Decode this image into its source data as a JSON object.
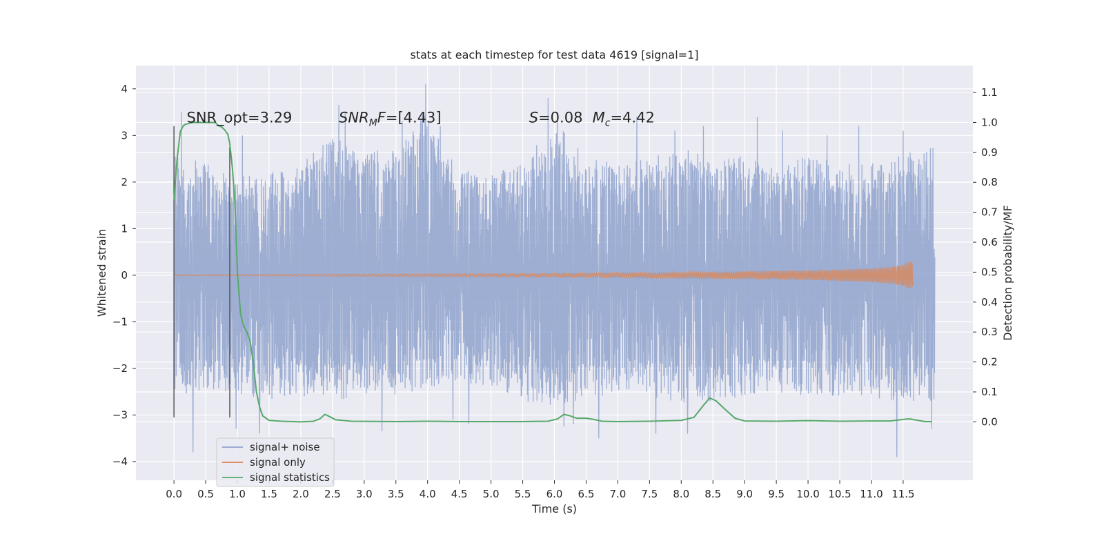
{
  "chart_data": {
    "type": "line",
    "title": "stats at each timestep for test data 4619 [signal=1]",
    "xlabel": "Time (s)",
    "ylabel": "Whitened strain",
    "y2label": "Detection probability/MF",
    "xlim": [
      -0.6,
      12.6
    ],
    "ylim": [
      -4.4,
      4.5
    ],
    "y2lim": [
      -0.195,
      1.19
    ],
    "xticks": [
      0.0,
      0.5,
      1.0,
      1.5,
      2.0,
      2.5,
      3.0,
      3.5,
      4.0,
      4.5,
      5.0,
      5.5,
      6.0,
      6.5,
      7.0,
      7.5,
      8.0,
      8.5,
      9.0,
      9.5,
      10.0,
      10.5,
      11.0,
      11.5
    ],
    "xtick_labels": [
      "0.0",
      "0.5",
      "1.0",
      "1.5",
      "2.0",
      "2.5",
      "3.0",
      "3.5",
      "4.0",
      "4.5",
      "5.0",
      "5.5",
      "6.0",
      "6.5",
      "7.0",
      "7.5",
      "8.0",
      "8.5",
      "9.0",
      "9.5",
      "10.0",
      "10.5",
      "11.0",
      "11.5"
    ],
    "yticks": [
      -4,
      -3,
      -2,
      -1,
      0,
      1,
      2,
      3,
      4
    ],
    "ytick_labels": [
      "−4",
      "−3",
      "−2",
      "−1",
      "0",
      "1",
      "2",
      "3",
      "4"
    ],
    "y2ticks": [
      0.0,
      0.1,
      0.2,
      0.3,
      0.4,
      0.5,
      0.6,
      0.7,
      0.8,
      0.9,
      1.0,
      1.1
    ],
    "y2tick_labels": [
      "0.0",
      "0.1",
      "0.2",
      "0.3",
      "0.4",
      "0.5",
      "0.6",
      "0.7",
      "0.8",
      "0.9",
      "1.0",
      "1.1"
    ],
    "grid": true,
    "legend_position": "lower-left",
    "series": [
      {
        "name": "signal+ noise",
        "color": "#8fa3cc",
        "axis": "left",
        "x_range": [
          0.0,
          12.0
        ],
        "envelope_upper": [
          [
            0.0,
            2.6
          ],
          [
            0.5,
            2.4
          ],
          [
            1.0,
            2.1
          ],
          [
            1.5,
            2.3
          ],
          [
            2.0,
            2.4
          ],
          [
            2.5,
            3.0
          ],
          [
            3.0,
            2.6
          ],
          [
            3.5,
            2.8
          ],
          [
            4.0,
            3.6
          ],
          [
            4.5,
            2.3
          ],
          [
            5.0,
            2.2
          ],
          [
            5.5,
            2.4
          ],
          [
            6.0,
            3.3
          ],
          [
            6.5,
            2.6
          ],
          [
            7.0,
            2.4
          ],
          [
            7.5,
            2.5
          ],
          [
            8.0,
            2.8
          ],
          [
            8.5,
            2.5
          ],
          [
            9.0,
            2.6
          ],
          [
            9.5,
            2.3
          ],
          [
            10.0,
            2.6
          ],
          [
            10.5,
            2.4
          ],
          [
            11.0,
            2.4
          ],
          [
            11.5,
            2.6
          ],
          [
            12.0,
            2.8
          ]
        ],
        "envelope_lower": [
          [
            0.0,
            -2.7
          ],
          [
            0.5,
            -2.5
          ],
          [
            1.0,
            -2.6
          ],
          [
            1.5,
            -2.7
          ],
          [
            2.0,
            -2.6
          ],
          [
            2.5,
            -2.7
          ],
          [
            3.0,
            -2.6
          ],
          [
            3.5,
            -2.6
          ],
          [
            4.0,
            -2.4
          ],
          [
            4.5,
            -2.4
          ],
          [
            5.0,
            -2.4
          ],
          [
            5.5,
            -2.7
          ],
          [
            6.0,
            -2.8
          ],
          [
            6.5,
            -2.7
          ],
          [
            7.0,
            -2.5
          ],
          [
            7.5,
            -2.6
          ],
          [
            8.0,
            -2.8
          ],
          [
            8.5,
            -2.7
          ],
          [
            9.0,
            -2.6
          ],
          [
            9.5,
            -2.5
          ],
          [
            10.0,
            -2.6
          ],
          [
            10.5,
            -2.6
          ],
          [
            11.0,
            -2.6
          ],
          [
            11.5,
            -2.8
          ],
          [
            12.0,
            -2.7
          ]
        ],
        "spikes": [
          [
            0.12,
            3.5
          ],
          [
            0.3,
            -3.8
          ],
          [
            0.98,
            -3.3
          ],
          [
            1.08,
            3.0
          ],
          [
            1.35,
            -3.4
          ],
          [
            2.6,
            3.65
          ],
          [
            2.7,
            3.5
          ],
          [
            3.28,
            -3.35
          ],
          [
            3.6,
            3.3
          ],
          [
            3.97,
            4.1
          ],
          [
            4.2,
            3.2
          ],
          [
            4.4,
            -3.1
          ],
          [
            4.65,
            -3.2
          ],
          [
            5.9,
            3.8
          ],
          [
            6.05,
            3.5
          ],
          [
            6.15,
            -3.25
          ],
          [
            6.3,
            -3.2
          ],
          [
            6.7,
            -3.5
          ],
          [
            7.3,
            3.4
          ],
          [
            7.6,
            -3.4
          ],
          [
            7.9,
            3.1
          ],
          [
            8.1,
            -3.4
          ],
          [
            8.35,
            3.2
          ],
          [
            9.2,
            3.4
          ],
          [
            9.6,
            3.1
          ],
          [
            10.3,
            3.0
          ],
          [
            10.8,
            3.2
          ],
          [
            11.4,
            -3.9
          ],
          [
            11.5,
            3.1
          ],
          [
            11.95,
            -3.3
          ]
        ]
      },
      {
        "name": "signal only",
        "color": "#dd8452",
        "axis": "left",
        "amplitude": [
          [
            0.0,
            0.01
          ],
          [
            2.0,
            0.02
          ],
          [
            4.0,
            0.03
          ],
          [
            6.0,
            0.04
          ],
          [
            8.0,
            0.06
          ],
          [
            9.0,
            0.08
          ],
          [
            10.0,
            0.1
          ],
          [
            10.5,
            0.12
          ],
          [
            11.0,
            0.15
          ],
          [
            11.3,
            0.18
          ],
          [
            11.5,
            0.23
          ],
          [
            11.6,
            0.3
          ],
          [
            11.65,
            0.28
          ]
        ]
      },
      {
        "name": "signal statistics",
        "color": "#55a868",
        "axis": "right",
        "points": [
          [
            0.0,
            0.74
          ],
          [
            0.05,
            0.88
          ],
          [
            0.1,
            0.97
          ],
          [
            0.15,
            0.99
          ],
          [
            0.2,
            0.995
          ],
          [
            0.3,
            1.0
          ],
          [
            0.5,
            1.0
          ],
          [
            0.65,
            1.0
          ],
          [
            0.7,
            0.99
          ],
          [
            0.75,
            0.985
          ],
          [
            0.8,
            0.975
          ],
          [
            0.85,
            0.96
          ],
          [
            0.88,
            0.93
          ],
          [
            0.92,
            0.85
          ],
          [
            0.96,
            0.74
          ],
          [
            1.0,
            0.5
          ],
          [
            1.05,
            0.36
          ],
          [
            1.1,
            0.32
          ],
          [
            1.15,
            0.3
          ],
          [
            1.2,
            0.27
          ],
          [
            1.25,
            0.2
          ],
          [
            1.3,
            0.1
          ],
          [
            1.35,
            0.05
          ],
          [
            1.4,
            0.02
          ],
          [
            1.5,
            0.005
          ],
          [
            1.7,
            0.002
          ],
          [
            2.0,
            0.0
          ],
          [
            2.2,
            0.002
          ],
          [
            2.3,
            0.01
          ],
          [
            2.38,
            0.025
          ],
          [
            2.45,
            0.018
          ],
          [
            2.55,
            0.007
          ],
          [
            2.8,
            0.002
          ],
          [
            3.5,
            0.001
          ],
          [
            4.0,
            0.002
          ],
          [
            4.5,
            0.001
          ],
          [
            5.0,
            0.001
          ],
          [
            5.5,
            0.001
          ],
          [
            5.9,
            0.002
          ],
          [
            6.05,
            0.01
          ],
          [
            6.15,
            0.025
          ],
          [
            6.25,
            0.02
          ],
          [
            6.35,
            0.012
          ],
          [
            6.5,
            0.012
          ],
          [
            6.6,
            0.009
          ],
          [
            6.75,
            0.002
          ],
          [
            7.0,
            0.001
          ],
          [
            7.5,
            0.002
          ],
          [
            8.0,
            0.005
          ],
          [
            8.2,
            0.015
          ],
          [
            8.35,
            0.055
          ],
          [
            8.45,
            0.08
          ],
          [
            8.55,
            0.07
          ],
          [
            8.7,
            0.04
          ],
          [
            8.85,
            0.012
          ],
          [
            9.0,
            0.003
          ],
          [
            9.5,
            0.002
          ],
          [
            10.0,
            0.004
          ],
          [
            10.5,
            0.002
          ],
          [
            11.0,
            0.003
          ],
          [
            11.3,
            0.003
          ],
          [
            11.5,
            0.008
          ],
          [
            11.6,
            0.01
          ],
          [
            11.7,
            0.006
          ],
          [
            11.85,
            0.001
          ],
          [
            11.95,
            0.001
          ]
        ]
      }
    ],
    "vertical_markers": [
      {
        "x": 0.0,
        "y_range": [
          -3.05,
          3.2
        ]
      },
      {
        "x": 0.88,
        "y_range": [
          -3.05,
          2.75
        ]
      }
    ],
    "annotations": [
      {
        "id": "snr-opt",
        "text": "SNR_opt=3.29",
        "x": 0.2,
        "y": 3.28
      },
      {
        "id": "snr-mf",
        "prefix": "SNR",
        "subscript": "M",
        "mid": "F",
        "suffix": "=[4.43]",
        "x": 2.6,
        "y": 3.28
      },
      {
        "id": "s-value",
        "italic": "S",
        "suffix": "=0.08",
        "x": 5.6,
        "y": 3.28
      },
      {
        "id": "mc-value",
        "italic": "M",
        "subscript": "c",
        "suffix": "=4.42",
        "x": 6.6,
        "y": 3.28
      }
    ]
  }
}
